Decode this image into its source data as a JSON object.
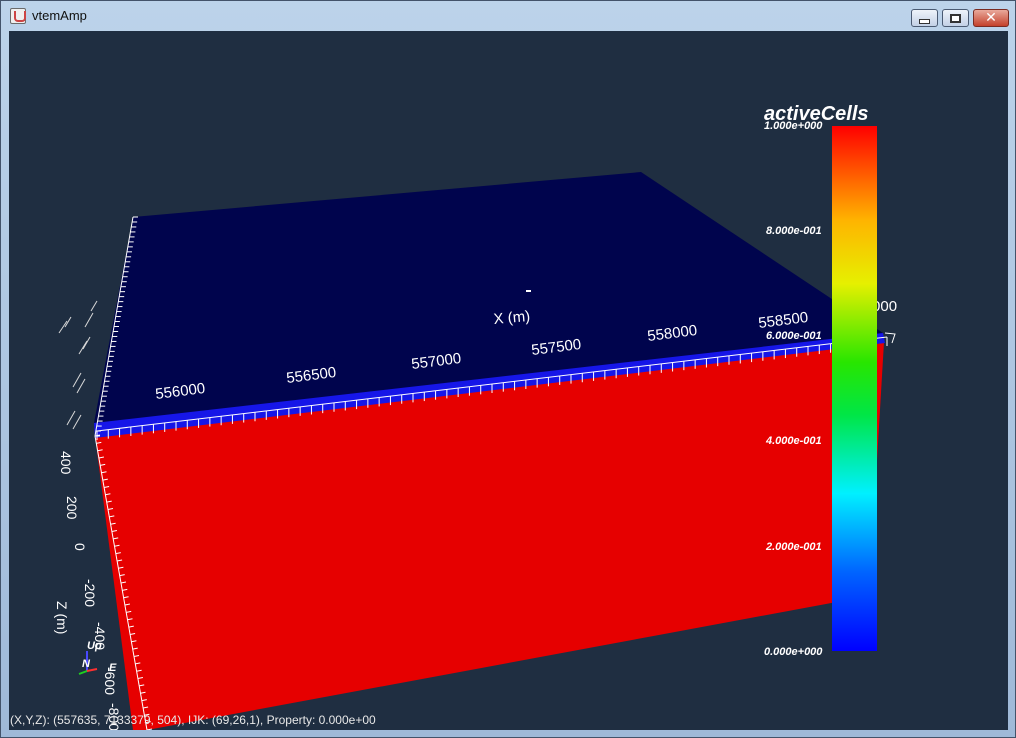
{
  "window": {
    "title": "vtemAmp",
    "controls": {
      "minimize": "minimize",
      "maximize": "maximize",
      "close": "✕"
    }
  },
  "scene": {
    "x_axis": {
      "title": "X (m)",
      "ticks": [
        "556000",
        "556500",
        "557000",
        "557500",
        "558000",
        "558500",
        "559000"
      ]
    },
    "z_axis": {
      "title": "Z (m)",
      "ticks": [
        "400",
        "200",
        "0",
        "-200",
        "-400",
        "-600",
        "-800"
      ]
    },
    "orientation": {
      "up": "Up",
      "north": "N",
      "east": "E"
    },
    "colorbar": {
      "title": "activeCells",
      "labels": [
        "1.000e+000",
        "8.000e-001",
        "6.000e-001",
        "4.000e-001",
        "2.000e-001",
        "0.000e+000"
      ]
    },
    "colors": {
      "background": "#1f2e41",
      "top_face": "#00044d",
      "front_face": "#e60000",
      "edge_band": "#1616e8"
    }
  },
  "status": {
    "text": "(X,Y,Z): (557635, 7133379, 504), IJK: (69,26,1), Property: 0.000e+00"
  }
}
